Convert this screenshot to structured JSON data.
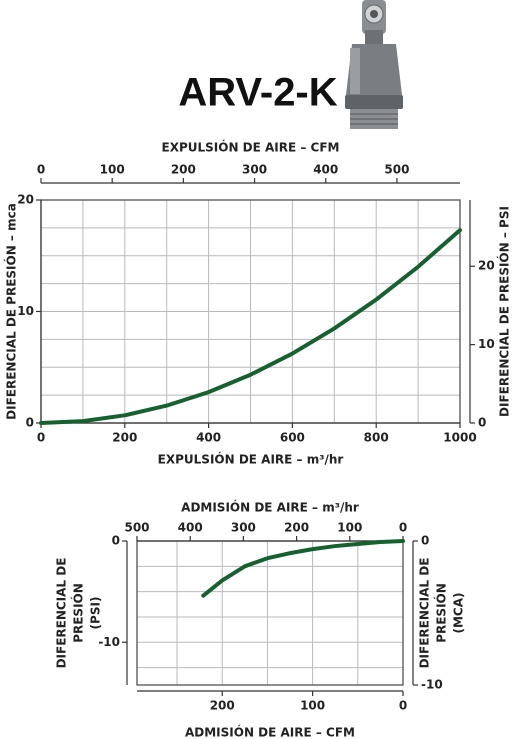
{
  "title": "ARV-2-K",
  "chart_data": [
    {
      "type": "line",
      "x2label": "EXPULSIÓN DE AIRE – CFM",
      "xlabel": "EXPULSIÓN DE AIRE – m³/hr",
      "ylabel": "DIFERENCIAL DE PRESIÓN – mca",
      "y2label": "DIFERENCIAL DE PRESIÓN – PSI",
      "xlim": [
        0,
        1000
      ],
      "xticks": [
        0,
        200,
        400,
        600,
        800,
        1000
      ],
      "x2lim": [
        0,
        588.6
      ],
      "x2ticks": [
        0,
        100,
        200,
        300,
        400,
        500
      ],
      "ylim": [
        0,
        20
      ],
      "yticks": [
        0,
        10,
        20
      ],
      "y2lim": [
        0,
        28.45
      ],
      "y2ticks": [
        0,
        10,
        20
      ],
      "xgrid": [
        0,
        100,
        200,
        300,
        400,
        500,
        600,
        700,
        800,
        900,
        1000
      ],
      "ygrid": [
        0,
        2.5,
        5,
        7.5,
        10,
        12.5,
        15,
        17.5,
        20
      ],
      "x": [
        0,
        100,
        200,
        300,
        400,
        500,
        600,
        700,
        800,
        900,
        1000
      ],
      "series": [
        {
          "color": "#16612f",
          "values": [
            0,
            0.17,
            0.69,
            1.56,
            2.77,
            4.33,
            6.23,
            8.48,
            11.07,
            14.01,
            17.3
          ]
        }
      ]
    },
    {
      "type": "line",
      "x2label": "ADMISIÓN DE AIRE – m³/hr",
      "xlabel": "ADMISIÓN DE AIRE – CFM",
      "ylabel": [
        "DIFERENCIAL DE",
        "PRESIÓN",
        "(PSI)"
      ],
      "y2label": [
        "DIFERENCIAL DE",
        "PRESIÓN",
        "(MCA)"
      ],
      "xlim": [
        294.3,
        0
      ],
      "xticks": [
        200,
        100,
        0
      ],
      "x2lim": [
        500,
        0
      ],
      "x2ticks": [
        500,
        400,
        300,
        200,
        100,
        0
      ],
      "ylim": [
        -14.22,
        0
      ],
      "yticks": [
        0,
        -10
      ],
      "y2lim": [
        -10,
        0
      ],
      "y2ticks": [
        0,
        -10
      ],
      "xgrid": [
        250,
        200,
        150,
        100,
        50,
        0
      ],
      "ygrid": [
        0,
        -2.5,
        -5,
        -7.5,
        -10,
        -12.5
      ],
      "x": [
        0,
        25,
        50,
        75,
        100,
        125,
        150,
        175,
        200,
        221
      ],
      "series": [
        {
          "color": "#16612f",
          "values": [
            0,
            -0.1,
            -0.3,
            -0.5,
            -0.8,
            -1.2,
            -1.7,
            -2.5,
            -3.9,
            -5.4
          ]
        }
      ]
    }
  ]
}
